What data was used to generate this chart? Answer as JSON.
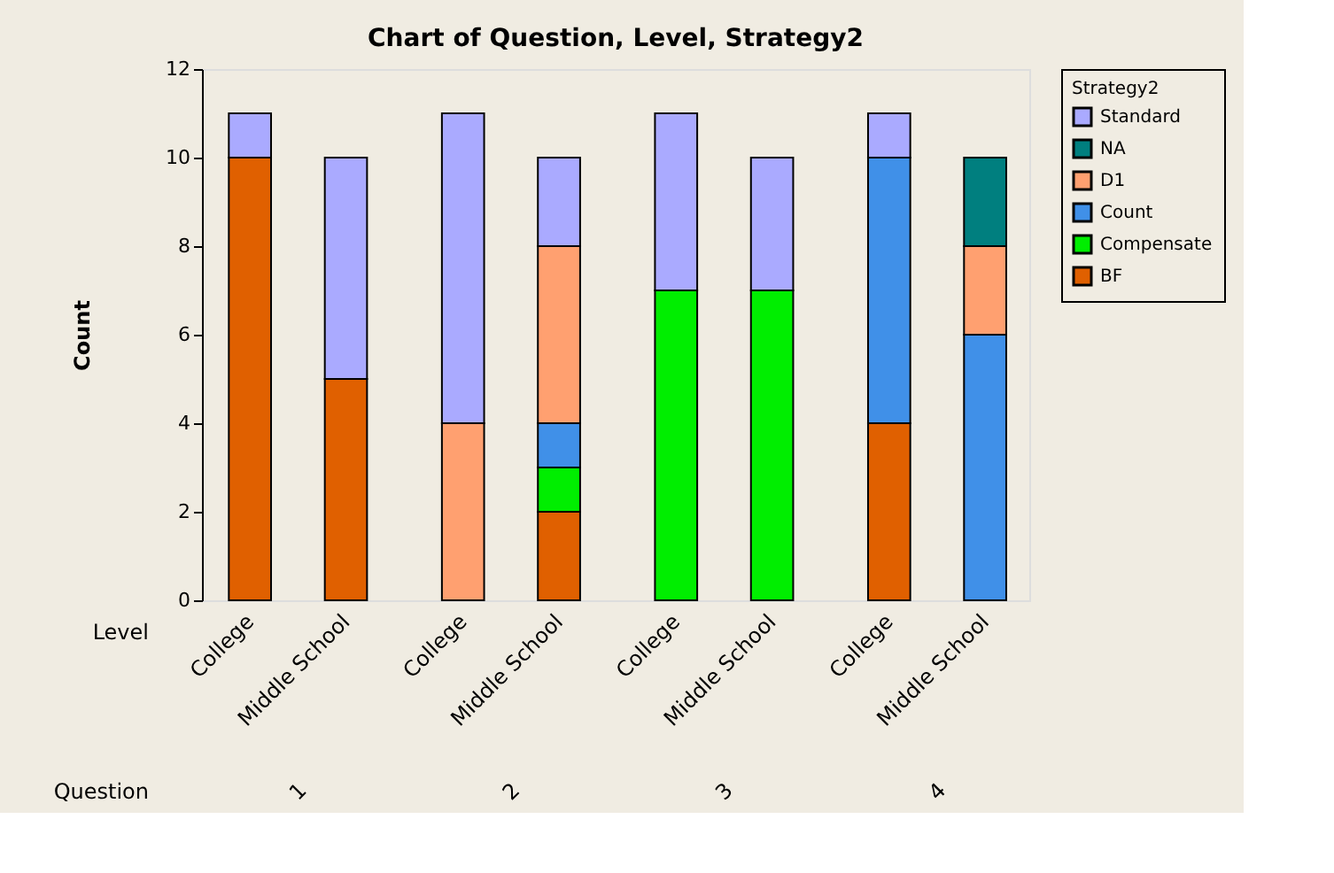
{
  "chart_data": {
    "type": "bar",
    "stacked": true,
    "title": "Chart of Question, Level, Strategy2",
    "ylabel": "Count",
    "legend_title": "Strategy2",
    "categories": [
      "College",
      "Middle School",
      "College",
      "Middle School",
      "College",
      "Middle School",
      "College",
      "Middle School"
    ],
    "series": [
      {
        "name": "BF",
        "color": "#e06000",
        "values": [
          10,
          5,
          0,
          2,
          0,
          0,
          4,
          0
        ]
      },
      {
        "name": "Compensate",
        "color": "#00ee00",
        "values": [
          0,
          0,
          0,
          1,
          7,
          7,
          0,
          0
        ]
      },
      {
        "name": "Count",
        "color": "#4090e8",
        "values": [
          0,
          0,
          0,
          1,
          0,
          0,
          6,
          6
        ]
      },
      {
        "name": "D1",
        "color": "#ffa070",
        "values": [
          0,
          0,
          4,
          4,
          0,
          0,
          0,
          2
        ]
      },
      {
        "name": "NA",
        "color": "#007f7f",
        "values": [
          0,
          0,
          0,
          0,
          0,
          0,
          0,
          2
        ]
      },
      {
        "name": "Standard",
        "color": "#aaaaff",
        "values": [
          1,
          5,
          7,
          2,
          4,
          3,
          1,
          0
        ]
      }
    ],
    "ylim": [
      0,
      12
    ],
    "yticks": [
      0,
      2,
      4,
      6,
      8,
      10,
      12
    ],
    "grid": false,
    "legend": "top right",
    "annotations": [
      "Level",
      "Question",
      "1",
      "2",
      "3",
      "4"
    ]
  }
}
